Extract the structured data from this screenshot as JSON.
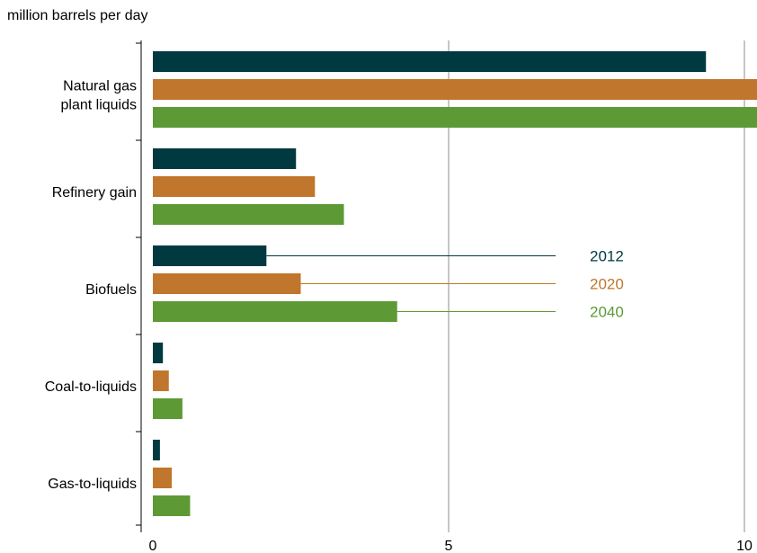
{
  "chart_data": {
    "type": "bar",
    "orientation": "horizontal",
    "ylabel": "million barrels per day",
    "categories": [
      [
        "Natural gas",
        "plant liquids"
      ],
      [
        "Refinery gain"
      ],
      [
        "Biofuels"
      ],
      [
        "Coal-to-liquids"
      ],
      [
        "Gas-to-liquids"
      ]
    ],
    "series": [
      {
        "name": "2012",
        "color": "#003a40",
        "values": [
          9.35,
          2.42,
          1.92,
          0.17,
          0.12
        ]
      },
      {
        "name": "2020",
        "color": "#c0762c",
        "values": [
          10.3,
          2.74,
          2.5,
          0.27,
          0.32
        ]
      },
      {
        "name": "2040",
        "color": "#5d9a35",
        "values": [
          10.3,
          3.23,
          4.13,
          0.5,
          0.63
        ]
      }
    ],
    "xlim": [
      0,
      10.3
    ],
    "xticks": [
      "0",
      "5",
      "10"
    ],
    "xtick_values": [
      0,
      5,
      10
    ],
    "grid": true,
    "legend": "inline-right-of-biofuels"
  }
}
